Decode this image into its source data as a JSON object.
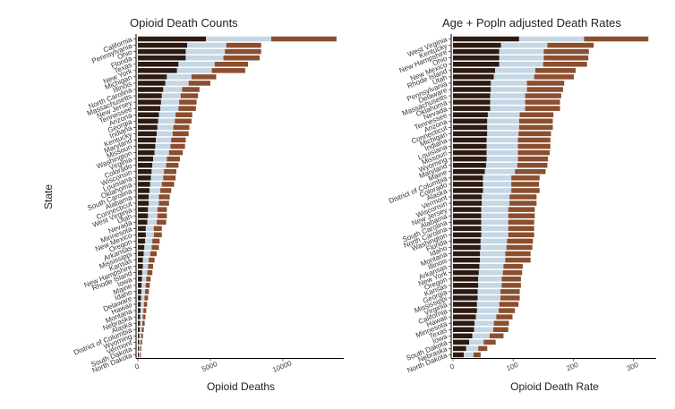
{
  "colors": {
    "segment1": "#2d1a12",
    "segment2": "#c5d6e4",
    "segment3": "#8b4e2e",
    "axis": "#000000"
  },
  "chart_data": [
    {
      "type": "bar",
      "orientation": "horizontal",
      "stacked": true,
      "title": "Opioid Death Counts",
      "xlabel": "Opioid Deaths",
      "ylabel": "State",
      "xlim": [
        0,
        14200
      ],
      "xticks": [
        {
          "v": 0,
          "label": "0"
        },
        {
          "v": 5000,
          "label": "5000"
        },
        {
          "v": 10000,
          "label": "10000"
        }
      ],
      "categories": [
        "California",
        "Pennsylvania",
        "Ohio",
        "Florida",
        "Texas",
        "New York",
        "Michigan",
        "Illinois",
        "North Carolina",
        "Massachusetts",
        "New Jersey",
        "Tennessee",
        "Arizona",
        "Georgia",
        "Indiana",
        "Kentucky",
        "Maryland",
        "Missouri",
        "Washington",
        "Virginia",
        "Colorado",
        "Wisconsin",
        "Louisiana",
        "Oklahoma",
        "South Carolina",
        "Alabama",
        "Connecticut",
        "West Virginia",
        "Utah",
        "Nevada",
        "Minnesota",
        "New Mexico",
        "Oregon",
        "Arkansas",
        "Mississippi",
        "Kansas",
        "New Hampshire",
        "Rhode Island",
        "Iowa",
        "Maine",
        "Idaho",
        "Delaware",
        "Hawaii",
        "Montana",
        "Nebraska",
        "Alaska",
        "District of Columbia",
        "Wyoming",
        "Vermont",
        "South Dakota",
        "North Dakota"
      ],
      "series": [
        {
          "values": [
            4700,
            3400,
            3300,
            3300,
            2800,
            2700,
            2000,
            1900,
            1750,
            1650,
            1600,
            1550,
            1450,
            1400,
            1350,
            1300,
            1250,
            1200,
            1150,
            1050,
            1000,
            950,
            900,
            850,
            800,
            750,
            750,
            700,
            700,
            650,
            550,
            550,
            500,
            450,
            400,
            350,
            350,
            300,
            280,
            260,
            240,
            220,
            200,
            180,
            160,
            150,
            130,
            110,
            100,
            80,
            70
          ]
        },
        {
          "values": [
            4500,
            2700,
            2700,
            2600,
            2500,
            2400,
            1700,
            1600,
            1300,
            1300,
            1250,
            1250,
            1150,
            1150,
            1100,
            1100,
            1050,
            1050,
            1000,
            950,
            950,
            850,
            850,
            800,
            750,
            700,
            700,
            650,
            650,
            650,
            550,
            550,
            500,
            500,
            450,
            400,
            350,
            350,
            300,
            280,
            260,
            240,
            220,
            200,
            180,
            160,
            140,
            120,
            100,
            80,
            70
          ]
        },
        {
          "values": [
            4500,
            2400,
            2500,
            2500,
            2300,
            2300,
            1700,
            1500,
            1200,
            1200,
            1200,
            1200,
            1150,
            1150,
            1100,
            1100,
            1000,
            1000,
            950,
            900,
            850,
            850,
            850,
            850,
            750,
            750,
            700,
            650,
            650,
            650,
            550,
            550,
            500,
            500,
            450,
            400,
            350,
            350,
            300,
            280,
            260,
            240,
            220,
            200,
            180,
            160,
            140,
            120,
            100,
            80,
            70
          ]
        }
      ]
    },
    {
      "type": "bar",
      "orientation": "horizontal",
      "stacked": true,
      "title": "Age + Popln adjusted Death Rates",
      "xlabel": "Opioid Death Rate",
      "ylabel": "",
      "xlim": [
        0,
        338
      ],
      "xticks": [
        {
          "v": 0,
          "label": "0"
        },
        {
          "v": 100,
          "label": "100"
        },
        {
          "v": 200,
          "label": "200"
        },
        {
          "v": 300,
          "label": "300"
        }
      ],
      "categories": [
        "West Virginia",
        "Kentucky",
        "New Hampshire",
        "Ohio",
        "New Mexico",
        "Rhode Island",
        "Utah",
        "Pennsylvania",
        "Delaware",
        "Massachusetts",
        "Oklahoma",
        "Nevada",
        "Tennessee",
        "Arizona",
        "Connecticut",
        "Michigan",
        "Indiana",
        "Louisiana",
        "Missouri",
        "Wyoming",
        "Maryland",
        "Maine",
        "District of Columbia",
        "Colorado",
        "Alaska",
        "Vermont",
        "Wisconsin",
        "New Jersey",
        "Alabama",
        "South Carolina",
        "North Carolina",
        "Washington",
        "Florida",
        "Idaho",
        "Montana",
        "Illinois",
        "Arkansas",
        "New York",
        "Oregon",
        "Kansas",
        "Georgia",
        "Mississippi",
        "Virginia",
        "California",
        "Hawaii",
        "Minnesota",
        "Texas",
        "Iowa",
        "South Dakota",
        "Nebraska",
        "North Dakota"
      ],
      "series": [
        {
          "values": [
            110,
            80,
            77,
            77,
            77,
            70,
            68,
            63,
            63,
            62,
            62,
            62,
            58,
            57,
            57,
            57,
            56,
            56,
            56,
            56,
            55,
            53,
            50,
            50,
            50,
            48,
            48,
            47,
            47,
            47,
            47,
            47,
            46,
            46,
            45,
            45,
            44,
            43,
            42,
            42,
            41,
            41,
            40,
            40,
            38,
            36,
            35,
            32,
            27,
            22,
            18
          ]
        },
        {
          "values": [
            108,
            77,
            74,
            74,
            73,
            67,
            67,
            60,
            60,
            58,
            58,
            58,
            53,
            53,
            53,
            52,
            52,
            52,
            52,
            52,
            52,
            50,
            47,
            47,
            47,
            46,
            46,
            45,
            45,
            45,
            45,
            45,
            44,
            43,
            42,
            42,
            40,
            40,
            39,
            39,
            38,
            38,
            37,
            36,
            34,
            32,
            32,
            29,
            24,
            20,
            16
          ]
        },
        {
          "values": [
            107,
            77,
            75,
            74,
            73,
            67,
            66,
            62,
            60,
            60,
            58,
            58,
            56,
            56,
            56,
            54,
            54,
            54,
            53,
            50,
            50,
            51,
            47,
            46,
            47,
            45,
            45,
            44,
            44,
            43,
            43,
            43,
            43,
            43,
            42,
            42,
            32,
            32,
            32,
            32,
            32,
            32,
            32,
            27,
            27,
            25,
            25,
            23,
            20,
            15,
            12
          ]
        }
      ]
    }
  ]
}
